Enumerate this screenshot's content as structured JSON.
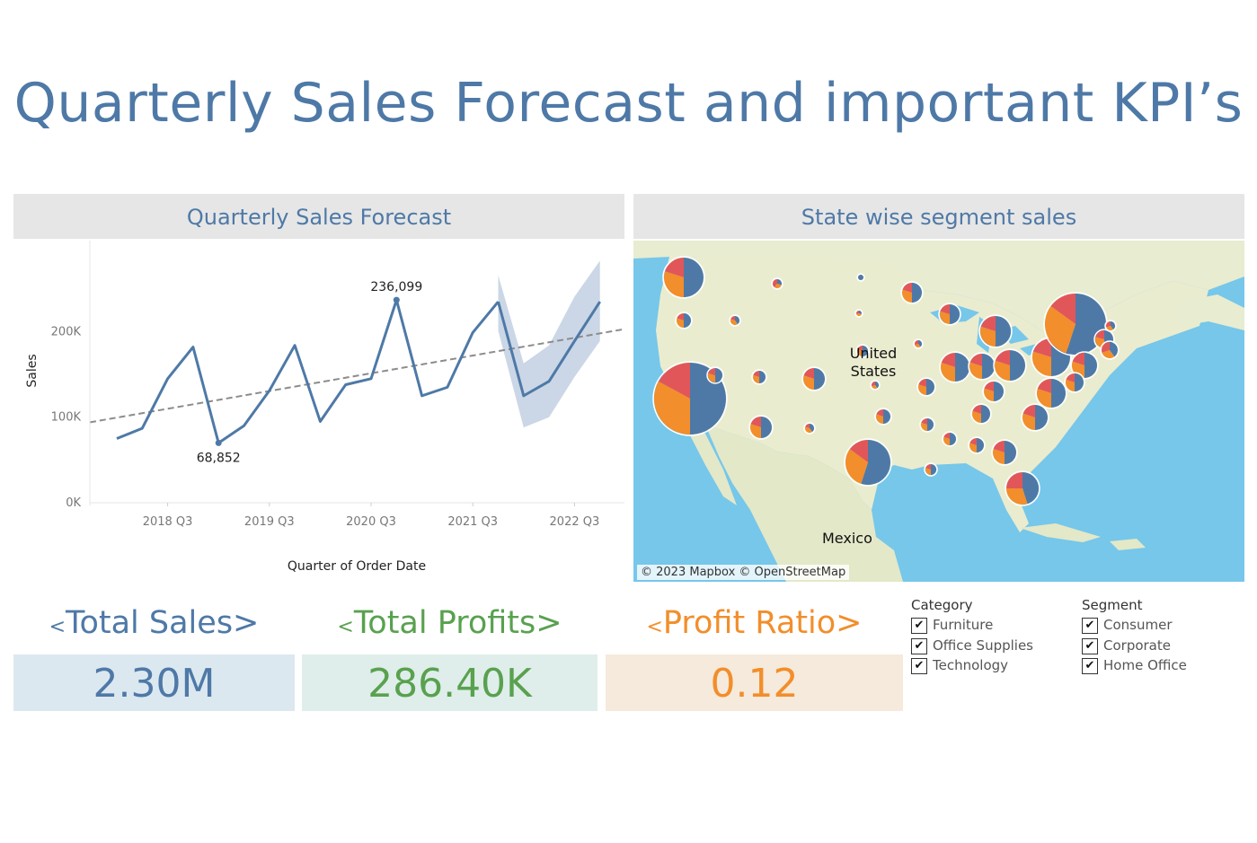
{
  "title": "Quarterly Sales Forecast and important KPI’s",
  "left_panel": {
    "title": "Quarterly Sales Forecast"
  },
  "right_panel": {
    "title": "State wise segment sales",
    "attribution": "© 2023 Mapbox © OpenStreetMap",
    "labels": {
      "country_us": "United States",
      "country_mx": "Mexico"
    }
  },
  "chart_data": {
    "type": "line",
    "xlabel": "Quarter of Order Date",
    "ylabel": "Sales",
    "x_ticks": [
      "2018 Q3",
      "2019 Q3",
      "2020 Q3",
      "2021 Q3",
      "2022 Q3"
    ],
    "y_ticks": [
      "0K",
      "100K",
      "200K"
    ],
    "ylim": [
      0,
      295000
    ],
    "actual": {
      "x": [
        "2018 Q1",
        "2018 Q2",
        "2018 Q3",
        "2018 Q4",
        "2019 Q1",
        "2019 Q2",
        "2019 Q3",
        "2019 Q4",
        "2020 Q1",
        "2020 Q2",
        "2020 Q3",
        "2020 Q4",
        "2021 Q1",
        "2021 Q2",
        "2021 Q3",
        "2021 Q4"
      ],
      "values": [
        74000,
        86000,
        144000,
        181000,
        68852,
        89000,
        130000,
        183000,
        94000,
        137000,
        144000,
        236099,
        124000,
        134000,
        198000,
        234000
      ]
    },
    "forecast": {
      "x": [
        "2021 Q4",
        "2022 Q1",
        "2022 Q2",
        "2022 Q3",
        "2022 Q4"
      ],
      "values": [
        234000,
        124000,
        141000,
        188000,
        234000
      ],
      "upper": [
        265000,
        162000,
        183000,
        240000,
        282000
      ],
      "lower": [
        200000,
        87000,
        99000,
        146000,
        188000
      ]
    },
    "trend": {
      "start": 93000,
      "end": 202000
    },
    "annotations": [
      {
        "x": "2019 Q1",
        "value": 68852,
        "label": "68,852"
      },
      {
        "x": "2020 Q4",
        "value": 236099,
        "label": "236,099"
      }
    ],
    "colors": {
      "line": "#4e79a7",
      "band": "#c5d3e3",
      "trend": "#8c8c8c"
    }
  },
  "map_data": {
    "segment_colors": {
      "Consumer": "#4e79a7",
      "Corporate": "#f28e2b",
      "Home Office": "#e15759"
    }
  },
  "kpis": [
    {
      "label": "Total Sales>",
      "prefix": "<",
      "value": "2.30M",
      "color": "#4e79a7",
      "bg": "#dce8f0"
    },
    {
      "label": "Total Profits>",
      "prefix": "<",
      "value": "286.40K",
      "color": "#59a14f",
      "bg": "#dfeeea"
    },
    {
      "label": "Profit Ratio>",
      "prefix": "<",
      "value": "0.12",
      "color": "#f28e2b",
      "bg": "#f5eadb"
    }
  ],
  "legends": {
    "category": {
      "title": "Category",
      "items": [
        "Furniture",
        "Office Supplies",
        "Technology"
      ]
    },
    "segment": {
      "title": "Segment",
      "items": [
        "Consumer",
        "Corporate",
        "Home Office"
      ]
    },
    "check_mark": "✔"
  }
}
